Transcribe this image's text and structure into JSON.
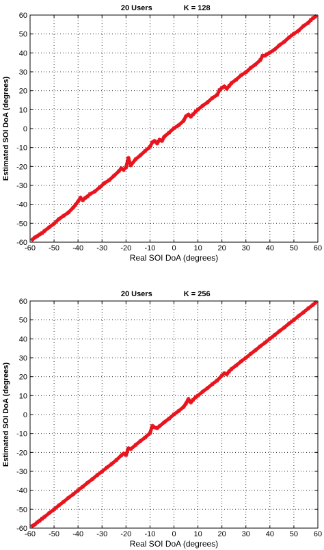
{
  "chart_data": [
    {
      "type": "scatter",
      "title_left": "20 Users",
      "title_right": "K = 128",
      "xlabel": "Real SOI DoA (degrees)",
      "ylabel": "Estimated SOI DoA (degrees)",
      "xlim": [
        -60,
        60
      ],
      "ylim": [
        -60,
        60
      ],
      "xticks": [
        -60,
        -50,
        -40,
        -30,
        -20,
        -10,
        0,
        10,
        20,
        30,
        40,
        50,
        60
      ],
      "yticks": [
        -60,
        -50,
        -40,
        -30,
        -20,
        -10,
        0,
        10,
        20,
        30,
        40,
        50,
        60
      ],
      "grid": true,
      "marker": "asterisk",
      "color": "#e8141e",
      "series": [
        {
          "points": [
            [
              -59,
              -58.6
            ],
            [
              -58,
              -57.5
            ],
            [
              -57,
              -56.8
            ],
            [
              -56,
              -55.9
            ],
            [
              -55,
              -55.2
            ],
            [
              -54,
              -54.1
            ],
            [
              -52,
              -52.1
            ],
            [
              -50,
              -50.2
            ],
            [
              -48,
              -47.8
            ],
            [
              -46,
              -46.1
            ],
            [
              -44,
              -44.3
            ],
            [
              -42,
              -41.7
            ],
            [
              -41,
              -40.2
            ],
            [
              -40,
              -38.5
            ],
            [
              -39,
              -36.5
            ],
            [
              -38,
              -37.8
            ],
            [
              -37,
              -36.6
            ],
            [
              -36,
              -35.8
            ],
            [
              -35,
              -34.6
            ],
            [
              -33,
              -33.2
            ],
            [
              -31,
              -31.1
            ],
            [
              -29,
              -28.8
            ],
            [
              -27,
              -27.2
            ],
            [
              -25,
              -24.9
            ],
            [
              -23,
              -22.5
            ],
            [
              -22,
              -21.0
            ],
            [
              -21,
              -21.8
            ],
            [
              -20,
              -20.5
            ],
            [
              -19,
              -15.5
            ],
            [
              -18,
              -19.4
            ],
            [
              -16,
              -16.2
            ],
            [
              -14,
              -14.1
            ],
            [
              -12,
              -11.8
            ],
            [
              -10,
              -9.6
            ],
            [
              -9,
              -7.2
            ],
            [
              -8,
              -6.5
            ],
            [
              -7,
              -7.8
            ],
            [
              -6,
              -5.9
            ],
            [
              -5,
              -6.5
            ],
            [
              -4,
              -4.2
            ],
            [
              -2,
              -2.1
            ],
            [
              0,
              0.2
            ],
            [
              2,
              1.8
            ],
            [
              4,
              4.1
            ],
            [
              5,
              6.5
            ],
            [
              6,
              7.4
            ],
            [
              7,
              6.3
            ],
            [
              8,
              7.6
            ],
            [
              9,
              8.9
            ],
            [
              10,
              10.1
            ],
            [
              12,
              12.1
            ],
            [
              14,
              13.9
            ],
            [
              16,
              16.2
            ],
            [
              18,
              17.8
            ],
            [
              19,
              20.4
            ],
            [
              20,
              21.5
            ],
            [
              21,
              22.3
            ],
            [
              22,
              21.1
            ],
            [
              23,
              22.5
            ],
            [
              24,
              24.1
            ],
            [
              26,
              25.9
            ],
            [
              28,
              28.2
            ],
            [
              30,
              29.8
            ],
            [
              32,
              32.1
            ],
            [
              34,
              33.9
            ],
            [
              36,
              36.2
            ],
            [
              37,
              38.5
            ],
            [
              38,
              38.6
            ],
            [
              39,
              39.4
            ],
            [
              40,
              40.2
            ],
            [
              42,
              41.8
            ],
            [
              44,
              44.1
            ],
            [
              46,
              45.9
            ],
            [
              48,
              48.2
            ],
            [
              50,
              50.1
            ],
            [
              52,
              51.8
            ],
            [
              54,
              54.2
            ],
            [
              56,
              55.9
            ],
            [
              57,
              57.3
            ],
            [
              58,
              58.4
            ],
            [
              59,
              59.2
            ]
          ]
        }
      ]
    },
    {
      "type": "scatter",
      "title_left": "20 Users",
      "title_right": "K = 256",
      "xlabel": "Real SOI DoA (degrees)",
      "ylabel": "Estimated SOI DoA (degrees)",
      "xlim": [
        -60,
        60
      ],
      "ylim": [
        -60,
        60
      ],
      "xticks": [
        -60,
        -50,
        -40,
        -30,
        -20,
        -10,
        0,
        10,
        20,
        30,
        40,
        50,
        60
      ],
      "yticks": [
        -60,
        -50,
        -40,
        -30,
        -20,
        -10,
        0,
        10,
        20,
        30,
        40,
        50,
        60
      ],
      "grid": true,
      "marker": "asterisk",
      "color": "#e8141e",
      "series": [
        {
          "points": [
            [
              -59,
              -58.8
            ],
            [
              -58,
              -58.1
            ],
            [
              -57,
              -56.9
            ],
            [
              -56,
              -56.1
            ],
            [
              -55,
              -55.0
            ],
            [
              -54,
              -54.1
            ],
            [
              -52,
              -52.0
            ],
            [
              -50,
              -50.1
            ],
            [
              -48,
              -48.0
            ],
            [
              -46,
              -46.1
            ],
            [
              -44,
              -44.0
            ],
            [
              -42,
              -42.1
            ],
            [
              -40,
              -40.0
            ],
            [
              -38,
              -38.1
            ],
            [
              -36,
              -36.0
            ],
            [
              -34,
              -34.1
            ],
            [
              -32,
              -32.0
            ],
            [
              -30,
              -30.1
            ],
            [
              -28,
              -28.0
            ],
            [
              -26,
              -26.1
            ],
            [
              -24,
              -24.0
            ],
            [
              -22,
              -21.6
            ],
            [
              -21,
              -20.6
            ],
            [
              -20,
              -21.4
            ],
            [
              -19,
              -17.8
            ],
            [
              -18,
              -18.2
            ],
            [
              -16,
              -16.1
            ],
            [
              -14,
              -14.0
            ],
            [
              -12,
              -12.1
            ],
            [
              -10,
              -9.8
            ],
            [
              -9,
              -6.0
            ],
            [
              -8,
              -6.8
            ],
            [
              -7,
              -7.2
            ],
            [
              -6,
              -6.1
            ],
            [
              -4,
              -4.0
            ],
            [
              -2,
              -2.1
            ],
            [
              0,
              0.1
            ],
            [
              2,
              1.9
            ],
            [
              4,
              4.0
            ],
            [
              5,
              5.8
            ],
            [
              6,
              8.2
            ],
            [
              7,
              6.4
            ],
            [
              8,
              7.8
            ],
            [
              9,
              9.1
            ],
            [
              10,
              10.0
            ],
            [
              12,
              12.1
            ],
            [
              14,
              14.0
            ],
            [
              16,
              16.1
            ],
            [
              18,
              18.0
            ],
            [
              20,
              20.6
            ],
            [
              21,
              21.8
            ],
            [
              22,
              21.3
            ],
            [
              23,
              22.8
            ],
            [
              24,
              24.1
            ],
            [
              26,
              26.0
            ],
            [
              28,
              28.1
            ],
            [
              30,
              30.0
            ],
            [
              32,
              32.1
            ],
            [
              34,
              34.0
            ],
            [
              36,
              36.1
            ],
            [
              38,
              38.0
            ],
            [
              40,
              40.1
            ],
            [
              42,
              42.0
            ],
            [
              44,
              44.1
            ],
            [
              46,
              46.0
            ],
            [
              48,
              48.1
            ],
            [
              50,
              50.0
            ],
            [
              52,
              52.1
            ],
            [
              54,
              54.0
            ],
            [
              56,
              56.1
            ],
            [
              58,
              58.0
            ],
            [
              59,
              59.1
            ]
          ]
        }
      ]
    }
  ]
}
